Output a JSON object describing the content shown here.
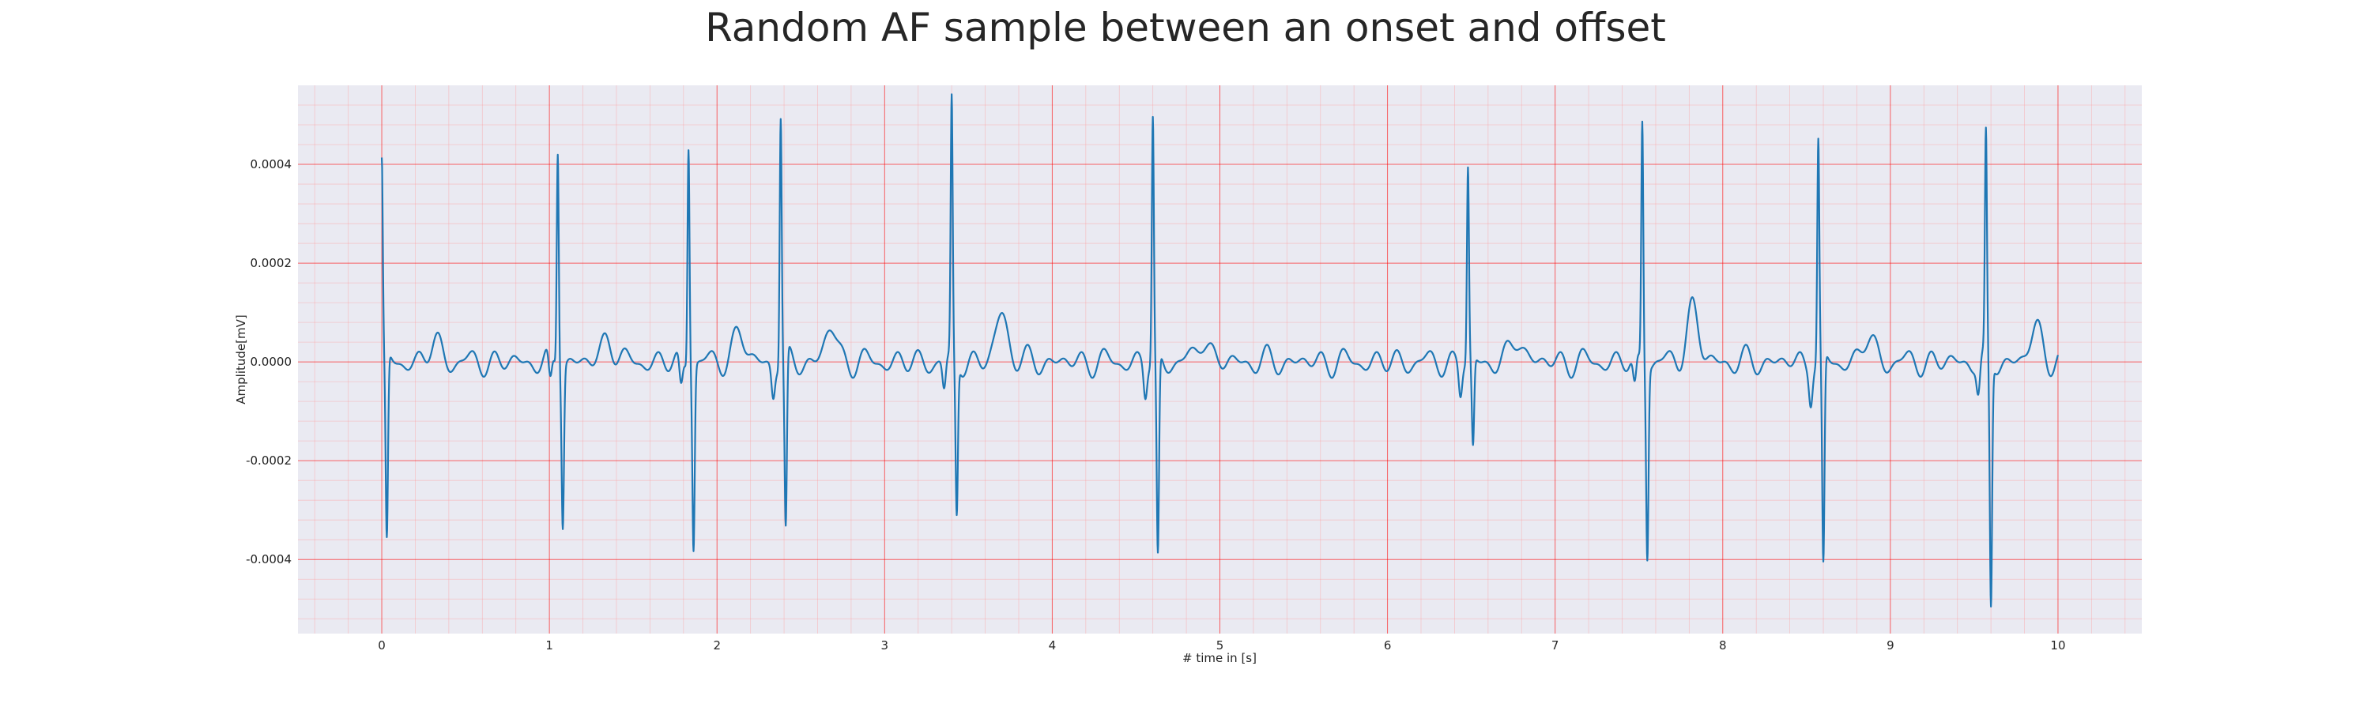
{
  "chart_data": {
    "type": "line",
    "title": "Random AF sample between an onset and offset",
    "xlabel": "# time in [s]",
    "ylabel": "Amplitude[mV]",
    "xlim": [
      -0.5,
      10.5
    ],
    "ylim": [
      -0.00055,
      0.00056
    ],
    "xticks": [
      0,
      1,
      2,
      3,
      4,
      5,
      6,
      7,
      8,
      9,
      10
    ],
    "xtick_labels": [
      "0",
      "1",
      "2",
      "3",
      "4",
      "5",
      "6",
      "7",
      "8",
      "9",
      "10"
    ],
    "yticks": [
      -0.0004,
      -0.0002,
      0.0,
      0.0002,
      0.0004
    ],
    "ytick_labels": [
      "-0.0004",
      "-0.0002",
      "0.0000",
      "0.0002",
      "0.0004"
    ],
    "grid": "major and minor, red",
    "colors": {
      "line": "#1f77b4",
      "background": "#eaeaf2",
      "major_grid": "#ff0000",
      "minor_grid": "#ff9999"
    },
    "series": [
      {
        "beats": [
          {
            "t": 0.0,
            "r": 0.0004,
            "s": -0.00038
          },
          {
            "t": 1.05,
            "r": 0.00044,
            "s": -0.00032
          },
          {
            "t": 1.83,
            "r": 0.00045,
            "s": -0.00037
          },
          {
            "t": 2.38,
            "r": 0.0005,
            "s": -0.00036
          },
          {
            "t": 3.4,
            "r": 0.00052,
            "s": -0.00031
          },
          {
            "t": 4.6,
            "r": 0.00049,
            "s": -0.00041
          },
          {
            "t": 6.48,
            "r": 0.00039,
            "s": -0.00018
          },
          {
            "t": 7.52,
            "r": 0.00049,
            "s": -0.00038
          },
          {
            "t": 8.57,
            "r": 0.00044,
            "s": -0.00043
          },
          {
            "t": 9.57,
            "r": 0.00044,
            "s": -0.0005
          }
        ],
        "t_waves": [
          {
            "t": 0.32,
            "a": 4e-05
          },
          {
            "t": 1.35,
            "a": 5e-05
          },
          {
            "t": 2.13,
            "a": 6e-05
          },
          {
            "t": 2.68,
            "a": 7e-05
          },
          {
            "t": 3.7,
            "a": 0.0001
          },
          {
            "t": 4.9,
            "a": 5e-05
          },
          {
            "t": 6.78,
            "a": 5e-05
          },
          {
            "t": 7.82,
            "a": 0.00011
          },
          {
            "t": 8.87,
            "a": 5e-05
          },
          {
            "t": 9.87,
            "a": 7e-05
          }
        ],
        "x_end": 10.0
      }
    ]
  }
}
